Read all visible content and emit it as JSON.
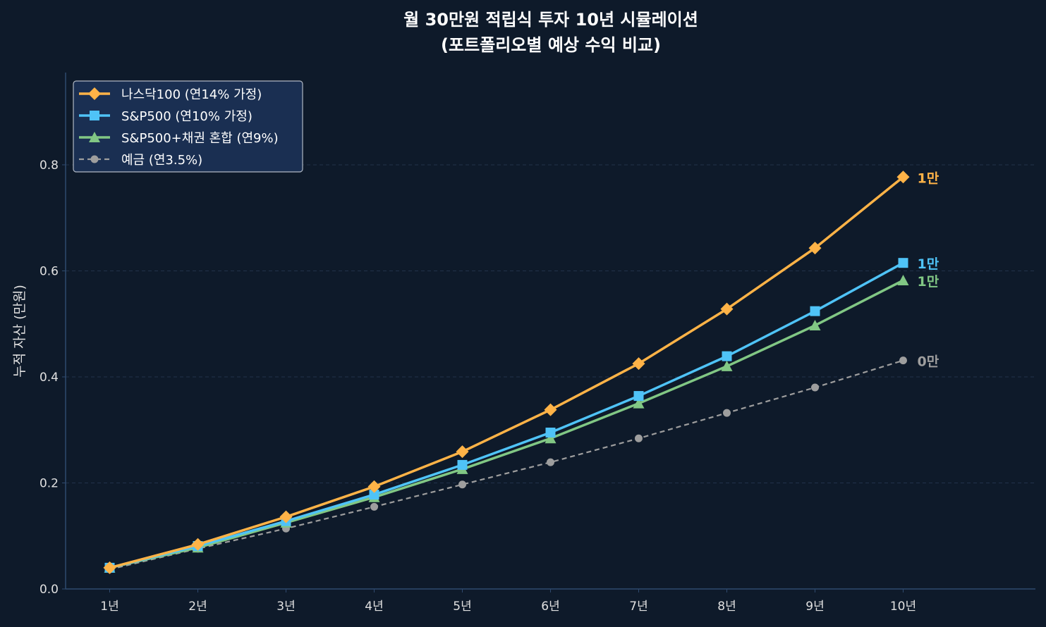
{
  "chart_data": {
    "type": "line",
    "title": "월 30만원 적립식 투자 10년 시뮬레이션",
    "subtitle": "(포트폴리오별 예상 수익 비교)",
    "xlabel": "",
    "ylabel": "누적 자산 (만원)",
    "categories": [
      "1년",
      "2년",
      "3년",
      "4년",
      "5년",
      "6년",
      "7년",
      "8년",
      "9년",
      "10년"
    ],
    "yticks": [
      "0.0",
      "0.2",
      "0.4",
      "0.6",
      "0.8"
    ],
    "ytick_values": [
      0,
      0.2,
      0.4,
      0.6,
      0.8
    ],
    "ylim": [
      0,
      0.974
    ],
    "xlim": [
      0.5,
      11.5
    ],
    "grid": "horizontal dashed",
    "legend": "top-left",
    "series": [
      {
        "name": "나스닥100 (연14% 가정)",
        "color": "#ffb347",
        "marker": "diamond",
        "dash": false,
        "end_label": "1만",
        "values": [
          0.04,
          0.084,
          0.136,
          0.193,
          0.259,
          0.338,
          0.425,
          0.528,
          0.643,
          0.777
        ]
      },
      {
        "name": "S&P500 (연10% 가정)",
        "color": "#4fc3f7",
        "marker": "square",
        "dash": false,
        "end_label": "1만",
        "values": [
          0.04,
          0.081,
          0.128,
          0.178,
          0.234,
          0.295,
          0.364,
          0.439,
          0.524,
          0.615
        ]
      },
      {
        "name": "S&P500+채권 혼합 (연9%)",
        "color": "#81c784",
        "marker": "triangle",
        "dash": false,
        "end_label": "1만",
        "values": [
          0.04,
          0.078,
          0.125,
          0.173,
          0.226,
          0.284,
          0.35,
          0.42,
          0.497,
          0.582
        ]
      },
      {
        "name": "예금 (연3.5%)",
        "color": "#9e9e9e",
        "marker": "circle",
        "dash": true,
        "end_label": "0만",
        "values": [
          0.037,
          0.076,
          0.114,
          0.155,
          0.197,
          0.239,
          0.284,
          0.332,
          0.38,
          0.431
        ]
      }
    ]
  }
}
